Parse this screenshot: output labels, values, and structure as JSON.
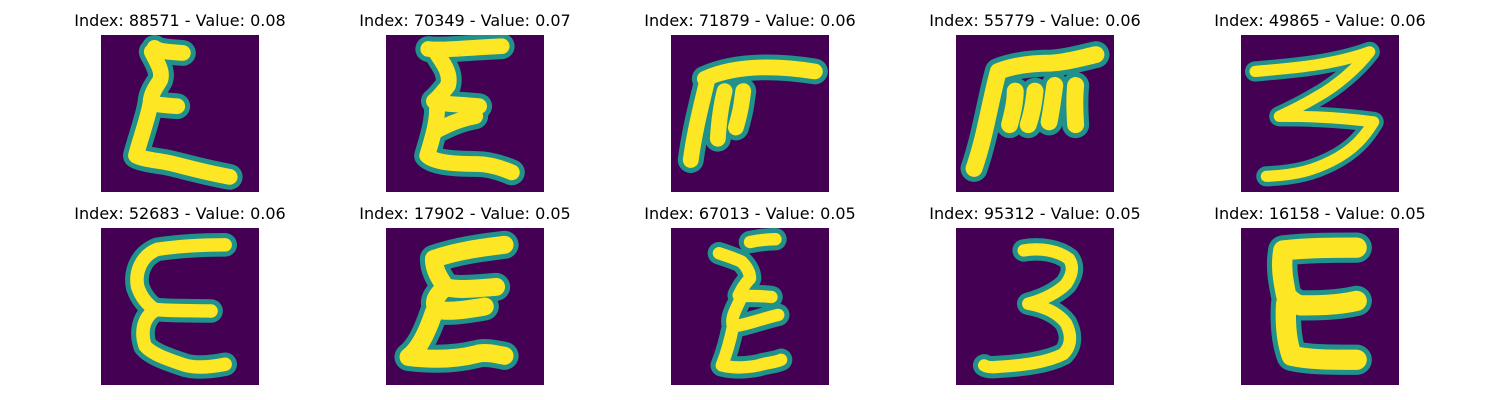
{
  "colors": {
    "background": "#440154",
    "stroke_core": "#fde725",
    "stroke_edge": "#21918c",
    "stroke_outer": "#31688e"
  },
  "panels": [
    {
      "title": "Index: 88571 - Value: 0.08",
      "glyph": "digit-three-reversed"
    },
    {
      "title": "Index: 70349 - Value: 0.07",
      "glyph": "digit-three-reversed"
    },
    {
      "title": "Index: 71879 - Value: 0.06",
      "glyph": "digit-three-rotated"
    },
    {
      "title": "Index: 55779 - Value: 0.06",
      "glyph": "digit-three-rotated"
    },
    {
      "title": "Index: 49865 - Value: 0.06",
      "glyph": "digit-three"
    },
    {
      "title": "Index: 52683 - Value: 0.06",
      "glyph": "digit-three-reversed"
    },
    {
      "title": "Index: 17902 - Value: 0.05",
      "glyph": "digit-three-reversed"
    },
    {
      "title": "Index: 67013 - Value: 0.05",
      "glyph": "digit-three-reversed"
    },
    {
      "title": "Index: 95312 - Value: 0.05",
      "glyph": "digit-three"
    },
    {
      "title": "Index: 16158 - Value: 0.05",
      "glyph": "digit-three-reversed"
    }
  ]
}
